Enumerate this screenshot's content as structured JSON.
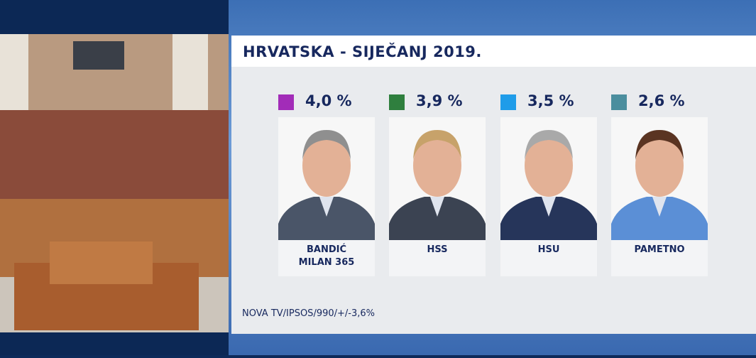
{
  "header": {
    "title": "HRVATSKA - SIJEČANJ 2019."
  },
  "items": [
    {
      "share": "4,0 %",
      "color": "#a22cb8",
      "label": [
        "BANDIĆ",
        "MILAN 365"
      ]
    },
    {
      "share": "3,9 %",
      "color": "#2f7f3e",
      "label": [
        "HSS"
      ]
    },
    {
      "share": "3,5 %",
      "color": "#1f9ce9",
      "label": [
        "HSU"
      ]
    },
    {
      "share": "2,6 %",
      "color": "#4b8e9e",
      "label": [
        "PAMETNO"
      ]
    }
  ],
  "footer": {
    "source": "NOVA TV/IPSOS/990/+/-3,6%"
  }
}
